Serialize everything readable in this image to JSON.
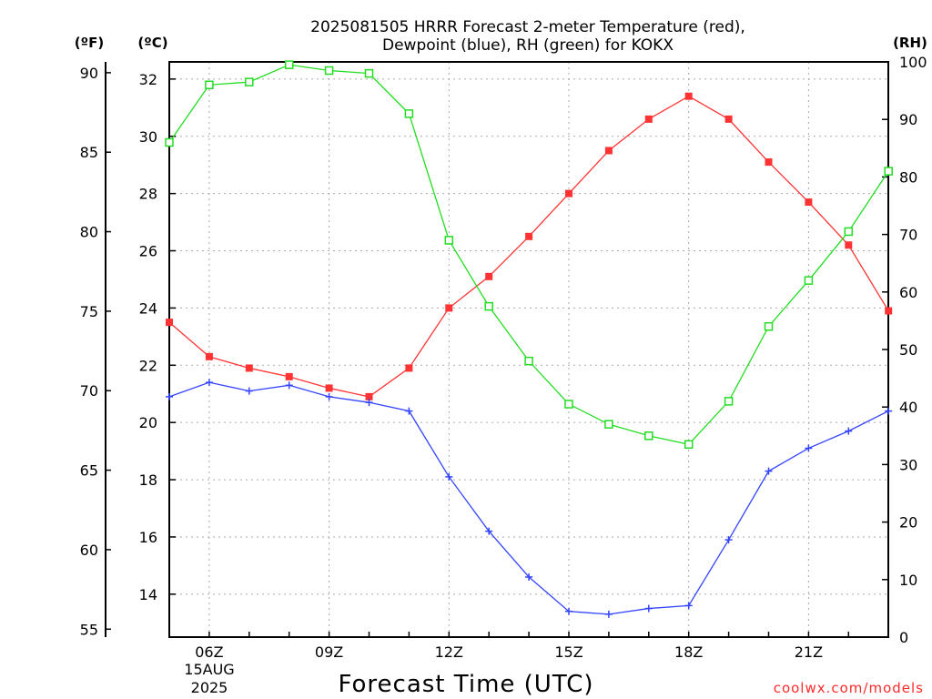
{
  "chart_data": {
    "type": "line",
    "title": [
      "2025081505 HRRR Forecast 2-meter Temperature (red),",
      "Dewpoint (blue), RH (green) for KOKX"
    ],
    "xlabel": "Forecast Time (UTC)",
    "credit": "coolwx.com/models",
    "axis_units": {
      "fahrenheit": "(ºF)",
      "celsius": "(ºC)",
      "rh": "(RH)"
    },
    "x": [
      "05Z",
      "06Z",
      "07Z",
      "08Z",
      "09Z",
      "10Z",
      "11Z",
      "12Z",
      "13Z",
      "14Z",
      "15Z",
      "16Z",
      "17Z",
      "18Z",
      "19Z",
      "20Z",
      "21Z",
      "22Z",
      "23Z"
    ],
    "x_tick_labels": [
      "06Z",
      "09Z",
      "12Z",
      "15Z",
      "18Z",
      "21Z"
    ],
    "x_date_label": [
      "15AUG",
      "2025"
    ],
    "left_axis_f": {
      "ticks": [
        55,
        60,
        65,
        70,
        75,
        80,
        85,
        90
      ]
    },
    "left_axis_c": {
      "ticks": [
        14,
        16,
        18,
        20,
        22,
        24,
        26,
        28,
        30,
        32
      ],
      "ylim": [
        12.5,
        32.6
      ]
    },
    "right_axis_rh": {
      "ticks": [
        0,
        10,
        20,
        30,
        40,
        50,
        60,
        70,
        80,
        90,
        100
      ],
      "ylim": [
        0,
        100
      ]
    },
    "grid": true,
    "series": [
      {
        "name": "Temperature",
        "axis": "celsius",
        "color": "#ff3333",
        "marker": "filled-square",
        "values": [
          23.5,
          22.3,
          21.9,
          21.6,
          21.2,
          20.9,
          21.9,
          24.0,
          25.1,
          26.5,
          28.0,
          29.5,
          30.6,
          31.4,
          30.6,
          29.1,
          27.7,
          26.2,
          23.9
        ]
      },
      {
        "name": "Dewpoint",
        "axis": "celsius",
        "color": "#3344ff",
        "marker": "plus",
        "values": [
          20.9,
          21.4,
          21.1,
          21.3,
          20.9,
          20.7,
          20.4,
          18.1,
          16.2,
          14.6,
          13.4,
          13.3,
          13.5,
          13.6,
          15.9,
          18.3,
          19.1,
          19.7,
          20.4
        ]
      },
      {
        "name": "RH",
        "axis": "rh",
        "color": "#22dd22",
        "marker": "open-square",
        "values": [
          86,
          96,
          96.5,
          99.5,
          98.5,
          98,
          91,
          69,
          57.5,
          48,
          40.5,
          37,
          35,
          33.5,
          41,
          54,
          62,
          70.5,
          81
        ]
      }
    ]
  }
}
